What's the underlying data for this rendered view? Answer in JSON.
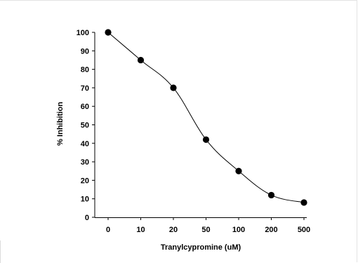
{
  "chart_data": {
    "type": "line",
    "title": "",
    "xlabel": "Tranylcypromine (uM)",
    "ylabel": "% Inhibition",
    "categories": [
      "0",
      "10",
      "20",
      "50",
      "100",
      "200",
      "500"
    ],
    "series": [
      {
        "values": [
          100,
          85,
          70,
          42,
          25,
          12,
          8
        ]
      }
    ],
    "yticks": [
      "0",
      "10",
      "20",
      "30",
      "40",
      "50",
      "60",
      "70",
      "80",
      "90",
      "100"
    ],
    "ylim": [
      0,
      100
    ],
    "grid": false,
    "legend": "none",
    "colors": {
      "line": "#000000",
      "marker": "#000000",
      "axis": "#000000"
    }
  }
}
